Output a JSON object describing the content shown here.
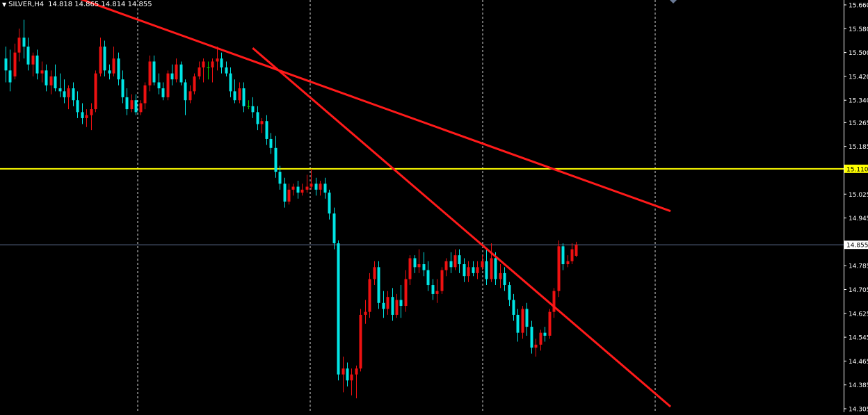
{
  "header": {
    "menu_glyph": "▼",
    "symbol": "SILVER,H4",
    "ohlc": "14.818 14.865 14.814 14.855"
  },
  "chart_data": {
    "type": "candlestick",
    "symbol": "SILVER",
    "timeframe": "H4",
    "ylim": [
      14.305,
      15.66
    ],
    "y_ticks": [
      "15.660",
      "15.580",
      "15.500",
      "15.420",
      "15.340",
      "15.265",
      "15.185",
      "15.025",
      "14.945",
      "14.785",
      "14.705",
      "14.625",
      "14.545",
      "14.465",
      "14.385",
      "14.305"
    ],
    "horizontal_line": {
      "value": 15.11,
      "label": "15.110",
      "color": "#FFFF00"
    },
    "bid_line": {
      "value": 14.855,
      "label": "14.855",
      "color": "#5a6a8a"
    },
    "trendlines": [
      {
        "from_bar": 12,
        "from_price": 15.705,
        "to_bar": 148,
        "to_price": 14.968,
        "color": "#FF1A1A"
      },
      {
        "from_bar": 55,
        "from_price": 15.515,
        "to_bar": 148,
        "to_price": 14.312,
        "color": "#FF1A1A"
      }
    ],
    "bull_color": "#EE1111",
    "bear_color": "#00E5E5",
    "doji_color": "#00CC00",
    "candles": [
      [
        15.48,
        15.52,
        15.4,
        15.44
      ],
      [
        15.44,
        15.51,
        15.37,
        15.4
      ],
      [
        15.42,
        15.53,
        15.41,
        15.5
      ],
      [
        15.5,
        15.58,
        15.47,
        15.55
      ],
      [
        15.55,
        15.61,
        15.48,
        15.52
      ],
      [
        15.52,
        15.55,
        15.44,
        15.46
      ],
      [
        15.46,
        15.5,
        15.42,
        15.49
      ],
      [
        15.49,
        15.51,
        15.41,
        15.43
      ],
      [
        15.43,
        15.47,
        15.4,
        15.44
      ],
      [
        15.44,
        15.46,
        15.37,
        15.39
      ],
      [
        15.39,
        15.44,
        15.36,
        15.42
      ],
      [
        15.42,
        15.46,
        15.37,
        15.38
      ],
      [
        15.38,
        15.43,
        15.35,
        15.37
      ],
      [
        15.37,
        15.41,
        15.33,
        15.35
      ],
      [
        15.35,
        15.39,
        15.31,
        15.38
      ],
      [
        15.38,
        15.4,
        15.32,
        15.34
      ],
      [
        15.34,
        15.37,
        15.28,
        15.3
      ],
      [
        15.3,
        15.33,
        15.26,
        15.28
      ],
      [
        15.28,
        15.31,
        15.25,
        15.29
      ],
      [
        15.29,
        15.33,
        15.24,
        15.31
      ],
      [
        15.31,
        15.44,
        15.3,
        15.43
      ],
      [
        15.43,
        15.55,
        15.42,
        15.52
      ],
      [
        15.52,
        15.54,
        15.42,
        15.44
      ],
      [
        15.44,
        15.46,
        15.41,
        15.43
      ],
      [
        15.43,
        15.52,
        15.42,
        15.48
      ],
      [
        15.48,
        15.5,
        15.39,
        15.41
      ],
      [
        15.41,
        15.44,
        15.33,
        15.35
      ],
      [
        15.35,
        15.38,
        15.29,
        15.31
      ],
      [
        15.31,
        15.36,
        15.3,
        15.34
      ],
      [
        15.34,
        15.36,
        15.29,
        15.3
      ],
      [
        15.3,
        15.34,
        15.29,
        15.33
      ],
      [
        15.33,
        15.4,
        15.31,
        15.39
      ],
      [
        15.39,
        15.49,
        15.37,
        15.47
      ],
      [
        15.47,
        15.49,
        15.39,
        15.4
      ],
      [
        15.4,
        15.43,
        15.36,
        15.38
      ],
      [
        15.38,
        15.4,
        15.34,
        15.35
      ],
      [
        15.35,
        15.44,
        15.34,
        15.43
      ],
      [
        15.43,
        15.46,
        15.39,
        15.41
      ],
      [
        15.41,
        15.48,
        15.4,
        15.46
      ],
      [
        15.46,
        15.47,
        15.39,
        15.4
      ],
      [
        15.4,
        15.41,
        15.29,
        15.34
      ],
      [
        15.34,
        15.39,
        15.33,
        15.37
      ],
      [
        15.37,
        15.43,
        15.36,
        15.42
      ],
      [
        15.42,
        15.47,
        15.41,
        15.45
      ],
      [
        15.45,
        15.48,
        15.4,
        15.47
      ],
      [
        15.45,
        15.47,
        15.41,
        15.45
      ],
      [
        15.45,
        15.48,
        15.4,
        15.47
      ],
      [
        15.47,
        15.52,
        15.44,
        15.48
      ],
      [
        15.48,
        15.5,
        15.43,
        15.45
      ],
      [
        15.45,
        15.47,
        15.42,
        15.43
      ],
      [
        15.43,
        15.45,
        15.35,
        15.37
      ],
      [
        15.37,
        15.41,
        15.33,
        15.34
      ],
      [
        15.34,
        15.4,
        15.33,
        15.38
      ],
      [
        15.38,
        15.4,
        15.3,
        15.32
      ],
      [
        15.32,
        15.34,
        15.31,
        15.32
      ],
      [
        15.32,
        15.35,
        15.28,
        15.3
      ],
      [
        15.3,
        15.32,
        15.24,
        15.26
      ],
      [
        15.26,
        15.28,
        15.23,
        15.27
      ],
      [
        15.27,
        15.29,
        15.19,
        15.21
      ],
      [
        15.21,
        15.23,
        15.16,
        15.18
      ],
      [
        15.18,
        15.22,
        15.08,
        15.1
      ],
      [
        15.1,
        15.12,
        15.04,
        15.06
      ],
      [
        15.06,
        15.08,
        14.98,
        15.0
      ],
      [
        15.0,
        15.06,
        14.99,
        15.04
      ],
      [
        15.04,
        15.06,
        15.02,
        15.05
      ],
      [
        15.05,
        15.07,
        15.01,
        15.03
      ],
      [
        15.03,
        15.06,
        15.02,
        15.04
      ],
      [
        15.04,
        15.09,
        15.03,
        15.05
      ],
      [
        15.05,
        15.11,
        15.04,
        15.06
      ],
      [
        15.06,
        15.08,
        15.02,
        15.04
      ],
      [
        15.04,
        15.07,
        15.02,
        15.06
      ],
      [
        15.06,
        15.08,
        15.01,
        15.03
      ],
      [
        15.03,
        15.04,
        14.94,
        14.96
      ],
      [
        14.96,
        14.98,
        14.84,
        14.86
      ],
      [
        14.86,
        14.87,
        14.4,
        14.42
      ],
      [
        14.42,
        14.48,
        14.36,
        14.44
      ],
      [
        14.44,
        14.46,
        14.38,
        14.4
      ],
      [
        14.4,
        14.44,
        14.35,
        14.42
      ],
      [
        14.42,
        14.45,
        14.34,
        14.44
      ],
      [
        14.44,
        14.64,
        14.43,
        14.62
      ],
      [
        14.62,
        14.67,
        14.59,
        14.63
      ],
      [
        14.63,
        14.76,
        14.61,
        14.74
      ],
      [
        14.74,
        14.8,
        14.72,
        14.78
      ],
      [
        14.78,
        14.8,
        14.64,
        14.66
      ],
      [
        14.66,
        14.7,
        14.61,
        14.64
      ],
      [
        14.64,
        14.7,
        14.62,
        14.68
      ],
      [
        14.68,
        14.71,
        14.6,
        14.62
      ],
      [
        14.62,
        14.69,
        14.61,
        14.67
      ],
      [
        14.67,
        14.72,
        14.61,
        14.65
      ],
      [
        14.65,
        14.77,
        14.63,
        14.74
      ],
      [
        14.74,
        14.82,
        14.72,
        14.81
      ],
      [
        14.81,
        14.82,
        14.76,
        14.78
      ],
      [
        14.78,
        14.84,
        14.76,
        14.79
      ],
      [
        14.79,
        14.83,
        14.75,
        14.77
      ],
      [
        14.77,
        14.8,
        14.7,
        14.72
      ],
      [
        14.72,
        14.74,
        14.67,
        14.69
      ],
      [
        14.69,
        14.74,
        14.66,
        14.7
      ],
      [
        14.7,
        14.78,
        14.69,
        14.77
      ],
      [
        14.77,
        14.81,
        14.75,
        14.8
      ],
      [
        14.8,
        14.83,
        14.76,
        14.78
      ],
      [
        14.78,
        14.84,
        14.77,
        14.82
      ],
      [
        14.82,
        14.84,
        14.76,
        14.79
      ],
      [
        14.79,
        14.81,
        14.73,
        14.75
      ],
      [
        14.75,
        14.8,
        14.73,
        14.78
      ],
      [
        14.78,
        14.8,
        14.75,
        14.76
      ],
      [
        14.76,
        14.8,
        14.74,
        14.78
      ],
      [
        14.78,
        14.82,
        14.77,
        14.8
      ],
      [
        14.8,
        14.84,
        14.72,
        14.74
      ],
      [
        14.74,
        14.86,
        14.73,
        14.81
      ],
      [
        14.81,
        14.83,
        14.72,
        14.74
      ],
      [
        14.74,
        14.79,
        14.71,
        14.76
      ],
      [
        14.76,
        14.78,
        14.7,
        14.72
      ],
      [
        14.72,
        14.73,
        14.65,
        14.67
      ],
      [
        14.67,
        14.69,
        14.6,
        14.62
      ],
      [
        14.62,
        14.64,
        14.53,
        14.56
      ],
      [
        14.56,
        14.65,
        14.54,
        14.64
      ],
      [
        14.64,
        14.66,
        14.55,
        14.58
      ],
      [
        14.58,
        14.6,
        14.49,
        14.51
      ],
      [
        14.51,
        14.54,
        14.48,
        14.52
      ],
      [
        14.52,
        14.57,
        14.5,
        14.56
      ],
      [
        14.56,
        14.58,
        14.53,
        14.55
      ],
      [
        14.55,
        14.64,
        14.54,
        14.63
      ],
      [
        14.63,
        14.71,
        14.61,
        14.7
      ],
      [
        14.7,
        14.87,
        14.68,
        14.85
      ],
      [
        14.85,
        14.86,
        14.77,
        14.79
      ],
      [
        14.79,
        14.82,
        14.78,
        14.8
      ],
      [
        14.8,
        14.86,
        14.79,
        14.84
      ],
      [
        14.818,
        14.865,
        14.814,
        14.855
      ]
    ]
  }
}
